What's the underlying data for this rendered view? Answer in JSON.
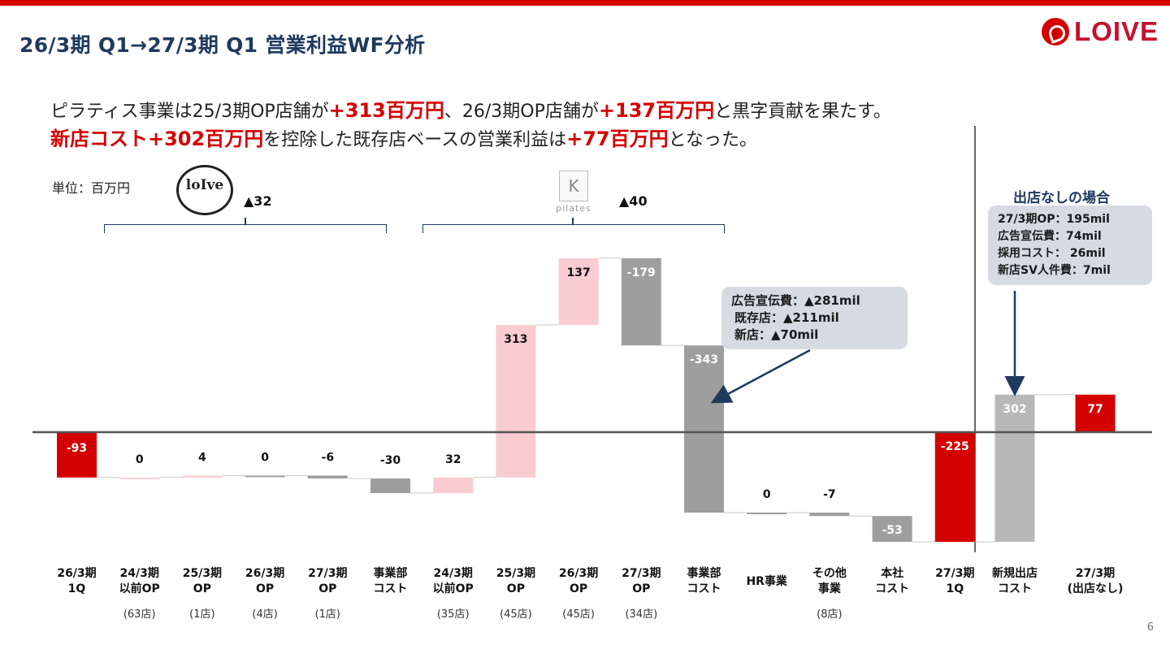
{
  "title": "26/3期 Q1→27/3期 Q1 営業利益WF分析",
  "brand": "LOIVE",
  "summary": {
    "line1": [
      "ピラティス事業は25/3期OP店舗が",
      "+313百万円",
      "、26/3期OP店舗が",
      "+137百万円",
      "と黒字貢献を果たす。"
    ],
    "line2": [
      "新店コスト+302百万円",
      "を控除した既存店ベースの営業利益は",
      "+77百万円",
      "となった。"
    ]
  },
  "unit_label": "単位：百万円",
  "loive_logo_text": "loIve",
  "k_logo": {
    "letter": "K",
    "word": "pilates"
  },
  "segment_deltas": [
    "▲32",
    "▲40"
  ],
  "callout_cost": {
    "lines": [
      "広告宣伝費：▲281mil",
      "既存店：▲211mil",
      "新店：▲70mil"
    ]
  },
  "callout_no_open": {
    "title": "出店なしの場合",
    "lines": [
      "27/3期OP：195mil",
      "広告宣伝費：74mil",
      "採用コスト： 26mil",
      "新店SV人件費：7mil"
    ]
  },
  "page_number": "6",
  "colors": {
    "red": "#d40000",
    "pink": "#f9ccd2",
    "gray": "#9e9e9e",
    "light_gray": "#b8b8b8",
    "navy": "#1f3a5f"
  },
  "chart_data": {
    "type": "waterfall",
    "ylim": [
      -250,
      600
    ],
    "steps": [
      {
        "kind": "total",
        "value": -93,
        "label": "-93",
        "color": "red",
        "x_label": [
          "26/3期",
          "1Q"
        ],
        "sub": ""
      },
      {
        "kind": "delta",
        "value": 0,
        "label": "0",
        "color": "pink",
        "x_label": [
          "24/3期",
          "以前OP"
        ],
        "sub": "(63店)"
      },
      {
        "kind": "delta",
        "value": 4,
        "label": "4",
        "color": "pink",
        "x_label": [
          "25/3期",
          "OP"
        ],
        "sub": "(1店)"
      },
      {
        "kind": "delta",
        "value": 0,
        "label": "0",
        "color": "gray",
        "x_label": [
          "26/3期",
          "OP"
        ],
        "sub": "(4店)"
      },
      {
        "kind": "delta",
        "value": -6,
        "label": "-6",
        "color": "gray",
        "x_label": [
          "27/3期",
          "OP"
        ],
        "sub": "(1店)"
      },
      {
        "kind": "delta",
        "value": -30,
        "label": "-30",
        "color": "gray",
        "x_label": [
          "事業部",
          "コスト"
        ],
        "sub": ""
      },
      {
        "kind": "delta",
        "value": 32,
        "label": "32",
        "color": "pink",
        "x_label": [
          "24/3期",
          "以前OP"
        ],
        "sub": "(35店)"
      },
      {
        "kind": "delta",
        "value": 313,
        "label": "313",
        "color": "pink",
        "x_label": [
          "25/3期",
          "OP"
        ],
        "sub": "(45店)"
      },
      {
        "kind": "delta",
        "value": 137,
        "label": "137",
        "color": "pink",
        "x_label": [
          "26/3期",
          "OP"
        ],
        "sub": "(45店)"
      },
      {
        "kind": "delta",
        "value": -179,
        "label": "-179",
        "color": "gray",
        "x_label": [
          "27/3期",
          "OP"
        ],
        "sub": "(34店)"
      },
      {
        "kind": "delta",
        "value": -343,
        "label": "-343",
        "color": "gray",
        "x_label": [
          "事業部",
          "コスト"
        ],
        "sub": ""
      },
      {
        "kind": "delta",
        "value": 0,
        "label": "0",
        "color": "gray",
        "x_label": [
          "HR事業"
        ],
        "sub": ""
      },
      {
        "kind": "delta",
        "value": -7,
        "label": "-7",
        "color": "gray",
        "x_label": [
          "その他",
          "事業"
        ],
        "sub": "(8店)"
      },
      {
        "kind": "delta",
        "value": -53,
        "label": "-53",
        "color": "gray",
        "x_label": [
          "本社",
          "コスト"
        ],
        "sub": ""
      },
      {
        "kind": "total",
        "value": -225,
        "label": "-225",
        "color": "red",
        "x_label": [
          "27/3期",
          "1Q"
        ],
        "sub": ""
      },
      {
        "kind": "delta",
        "value": 302,
        "label": "302",
        "color": "light_gray",
        "x_label": [
          "新規出店",
          "コスト"
        ],
        "sub": ""
      },
      {
        "kind": "total",
        "value": 77,
        "label": "77",
        "color": "red",
        "x_label": [
          "27/3期",
          "(出店なし)"
        ],
        "sub": ""
      }
    ]
  }
}
